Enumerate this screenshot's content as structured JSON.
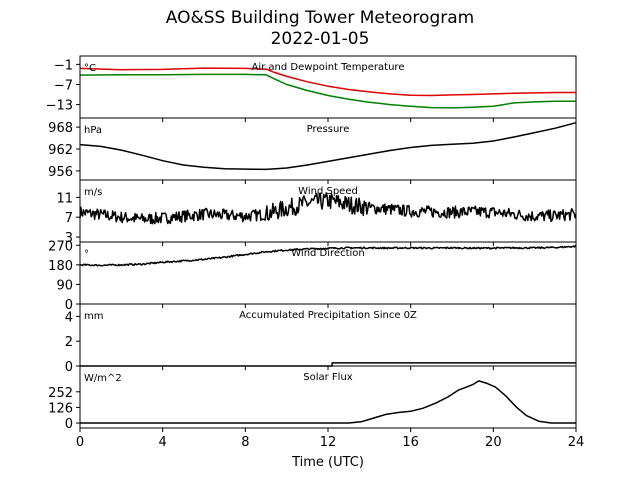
{
  "figure": {
    "title": "AO&SS Building Tower Meteorogram",
    "subtitle": "2022-01-05",
    "xlabel": "Time (UTC)"
  },
  "chart_data": [
    {
      "type": "line",
      "title": "Air and Dewpoint Temperature",
      "unit": "°C",
      "ylim": [
        -17,
        1.5
      ],
      "yticks": [
        -1,
        -7,
        -13
      ],
      "xlim": [
        0,
        24
      ],
      "series": [
        {
          "color": "#e00000",
          "x": [
            0,
            2,
            4,
            6,
            8,
            9,
            9.4,
            10,
            11,
            12,
            13,
            14,
            15,
            16,
            17,
            18,
            19,
            20,
            21,
            22,
            23,
            24
          ],
          "y": [
            -2.2,
            -2.6,
            -2.5,
            -2.1,
            -2.2,
            -2.4,
            -3.4,
            -4.6,
            -6.2,
            -7.5,
            -8.5,
            -9.2,
            -9.8,
            -10.2,
            -10.3,
            -10.1,
            -10.0,
            -9.8,
            -9.6,
            -9.5,
            -9.4,
            -9.4
          ]
        },
        {
          "color": "#008000",
          "x": [
            0,
            2,
            4,
            6,
            8,
            9,
            9.4,
            10,
            11,
            12,
            13,
            14,
            15,
            16,
            17,
            18,
            19,
            20,
            21,
            22,
            23,
            24
          ],
          "y": [
            -4.2,
            -4.1,
            -4.1,
            -4.0,
            -4.0,
            -4.1,
            -5.3,
            -7.0,
            -8.8,
            -10.3,
            -11.4,
            -12.3,
            -13.0,
            -13.5,
            -13.9,
            -14.0,
            -13.8,
            -13.5,
            -12.5,
            -12.2,
            -12.0,
            -12.0
          ]
        }
      ]
    },
    {
      "type": "line",
      "title": "Pressure",
      "unit": "hPa",
      "ylim": [
        953.5,
        970.5
      ],
      "yticks": [
        968,
        962,
        956
      ],
      "xlim": [
        0,
        24
      ],
      "series": [
        {
          "color": "#000000",
          "x": [
            0,
            1,
            2,
            3,
            4,
            5,
            6,
            7,
            8,
            9,
            10,
            11,
            12,
            13,
            14,
            15,
            16,
            17,
            18,
            19,
            20,
            21,
            22,
            23,
            24
          ],
          "y": [
            963.2,
            962.7,
            961.7,
            960.3,
            958.8,
            957.6,
            957.0,
            956.6,
            956.5,
            956.4,
            956.8,
            957.6,
            958.6,
            959.6,
            960.6,
            961.6,
            962.4,
            963.0,
            963.3,
            963.6,
            964.2,
            965.3,
            966.5,
            967.7,
            969.2
          ]
        }
      ]
    },
    {
      "type": "line",
      "title": "Wind Speed",
      "unit": "m/s",
      "ylim": [
        2,
        14.5
      ],
      "yticks": [
        11,
        7,
        3
      ],
      "xlim": [
        0,
        24
      ],
      "series": [
        {
          "color": "#000000",
          "x": [
            0,
            1,
            2,
            3,
            4,
            5,
            6,
            7,
            8,
            9,
            10,
            11,
            12,
            13,
            14,
            15,
            16,
            17,
            18,
            19,
            20,
            21,
            22,
            23,
            24
          ],
          "y": [
            8.0,
            7.5,
            7.0,
            6.6,
            6.8,
            7.2,
            7.6,
            7.4,
            7.2,
            7.6,
            8.8,
            9.8,
            10.3,
            9.6,
            8.9,
            8.6,
            8.2,
            8.1,
            8.0,
            8.1,
            8.0,
            7.6,
            7.2,
            7.3,
            7.6
          ]
        }
      ]
    },
    {
      "type": "line",
      "title": "Wind Direction",
      "unit": "°",
      "ylim": [
        0,
        285
      ],
      "yticks": [
        270,
        180,
        90,
        0
      ],
      "xlim": [
        0,
        24
      ],
      "series": [
        {
          "color": "#000000",
          "x": [
            0,
            1,
            2,
            3,
            4,
            5,
            6,
            7,
            8,
            9,
            10,
            11,
            12,
            13,
            14,
            15,
            16,
            17,
            18,
            19,
            20,
            21,
            22,
            23,
            24
          ],
          "y": [
            180,
            178,
            180,
            183,
            192,
            198,
            205,
            215,
            228,
            240,
            248,
            253,
            256,
            258,
            258,
            257,
            258,
            257,
            258,
            257,
            257,
            258,
            258,
            260,
            265
          ]
        }
      ]
    },
    {
      "type": "line",
      "title": "Accumulated Precipitation Since 0Z",
      "unit": "mm",
      "ylim": [
        0,
        5
      ],
      "yticks": [
        4,
        2,
        0
      ],
      "xlim": [
        0,
        24
      ],
      "series": [
        {
          "color": "#000000",
          "x": [
            0,
            12.2,
            12.2,
            24
          ],
          "y": [
            0,
            0,
            0.25,
            0.25
          ]
        }
      ]
    },
    {
      "type": "line",
      "title": "Solar Flux",
      "unit": "W/m^2",
      "ylim": [
        -40,
        460
      ],
      "yticks": [
        252,
        126,
        0
      ],
      "xlim": [
        0,
        24
      ],
      "xticks": [
        0,
        4,
        8,
        12,
        16,
        20,
        24
      ],
      "series": [
        {
          "color": "#000000",
          "x": [
            0,
            13,
            13.6,
            14.2,
            14.8,
            15.4,
            16,
            16.6,
            17.2,
            17.8,
            18.3,
            18.7,
            19,
            19.3,
            19.7,
            20.1,
            20.6,
            21.1,
            21.6,
            22.2,
            22.8,
            24
          ],
          "y": [
            0,
            0,
            10,
            40,
            70,
            85,
            95,
            120,
            160,
            210,
            265,
            290,
            310,
            340,
            320,
            290,
            220,
            130,
            60,
            15,
            0,
            0
          ]
        }
      ]
    }
  ]
}
